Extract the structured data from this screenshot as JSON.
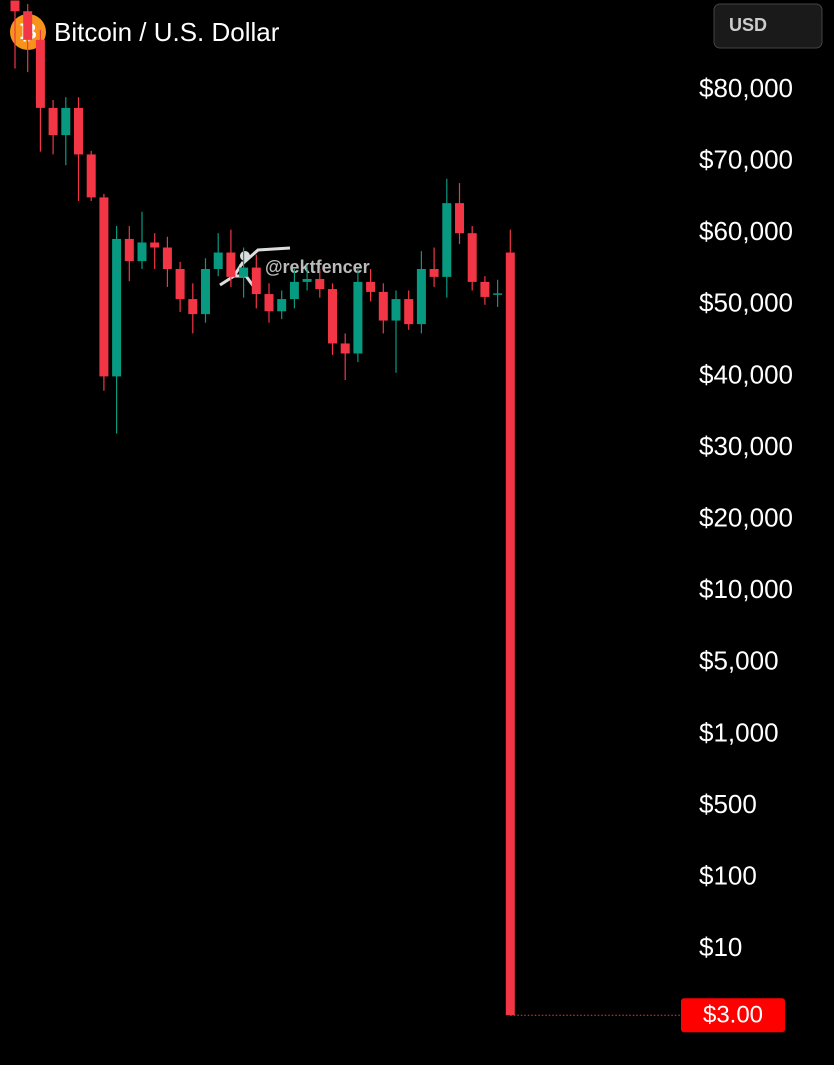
{
  "chart_data": {
    "type": "candlestick",
    "title": "Bitcoin / U.S. Dollar",
    "icon": "₿",
    "currency_button": "USD",
    "watermark": "@rektfencer",
    "up_color": "#089981",
    "down_color": "#f23645",
    "ylim": [
      3,
      92500
    ],
    "yticks": [
      {
        "value": 80000,
        "label": "$80,000"
      },
      {
        "value": 70000,
        "label": "$70,000"
      },
      {
        "value": 60000,
        "label": "$60,000"
      },
      {
        "value": 50000,
        "label": "$50,000"
      },
      {
        "value": 40000,
        "label": "$40,000"
      },
      {
        "value": 30000,
        "label": "$30,000"
      },
      {
        "value": 20000,
        "label": "$20,000"
      },
      {
        "value": 10000,
        "label": "$10,000"
      },
      {
        "value": 5000,
        "label": "$5,000"
      },
      {
        "value": 1000,
        "label": "$1,000"
      },
      {
        "value": 500,
        "label": "$500"
      },
      {
        "value": 100,
        "label": "$100"
      },
      {
        "value": 10,
        "label": "$10"
      }
    ],
    "last_price": {
      "value": 3,
      "label": "$3.00"
    },
    "open": [
      93000,
      91000,
      87000,
      77500,
      73700,
      77500,
      71000,
      65000,
      40000,
      59200,
      56100,
      58700,
      58000,
      55000,
      50800,
      48700,
      55000,
      57300,
      53900,
      55200,
      51500,
      49100,
      50800,
      53200,
      53600,
      52200,
      44600,
      43200,
      53200,
      51800,
      47800,
      50800,
      47300,
      55000,
      53900,
      64200,
      60000,
      53200,
      51400,
      57300
    ],
    "high": [
      93000,
      92000,
      88400,
      78600,
      79000,
      79000,
      71500,
      65500,
      61000,
      61000,
      63000,
      60000,
      59500,
      56000,
      53000,
      56500,
      60000,
      60500,
      58000,
      57000,
      53000,
      52000,
      55000,
      55500,
      55000,
      53000,
      46000,
      55000,
      55000,
      53000,
      52000,
      52000,
      57500,
      58000,
      67600,
      67000,
      61000,
      54000,
      53500,
      60500
    ],
    "low": [
      83000,
      82500,
      71400,
      71000,
      69500,
      64500,
      64500,
      38000,
      32000,
      53300,
      55000,
      55000,
      52500,
      49000,
      46000,
      47500,
      54000,
      52500,
      51000,
      49500,
      47500,
      48000,
      49500,
      52000,
      51000,
      43000,
      39500,
      42000,
      50500,
      46000,
      40500,
      46500,
      46000,
      52500,
      51000,
      58500,
      52000,
      50000,
      49700,
      3
    ],
    "close": [
      91000,
      87000,
      77500,
      73700,
      77500,
      71000,
      65000,
      40000,
      59200,
      56100,
      58700,
      58000,
      55000,
      50800,
      48700,
      55000,
      57300,
      53900,
      55200,
      51500,
      49100,
      50800,
      53200,
      53600,
      52200,
      44600,
      43200,
      53200,
      51800,
      47800,
      50800,
      47300,
      55000,
      53900,
      64200,
      60000,
      53200,
      51100,
      51600,
      3
    ]
  }
}
